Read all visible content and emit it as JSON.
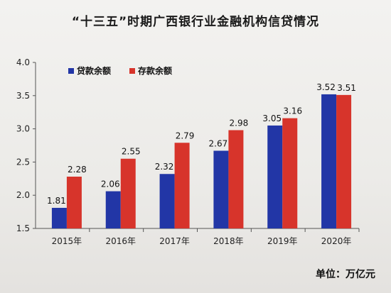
{
  "page": {
    "title": "“十三五”时期广西银行业金融机构信贷情况",
    "unit": "单位：万亿元"
  },
  "chart_data": {
    "type": "bar",
    "title": "“十三五”时期广西银行业金融机构信贷情况",
    "xlabel": "",
    "ylabel": "",
    "ylim": [
      1.5,
      4.0
    ],
    "yticks": [
      "1.5",
      "2.0",
      "2.5",
      "3.0",
      "3.5",
      "4.0"
    ],
    "categories": [
      "2015年",
      "2016年",
      "2017年",
      "2018年",
      "2019年",
      "2020年"
    ],
    "series": [
      {
        "name": "贷款余额",
        "color": "#2236a6",
        "values": [
          1.81,
          2.06,
          2.32,
          2.67,
          3.05,
          3.52
        ]
      },
      {
        "name": "存款余额",
        "color": "#d7342b",
        "values": [
          2.28,
          2.55,
          2.79,
          2.98,
          3.16,
          3.51
        ]
      }
    ],
    "legend": "top-left",
    "grid": false
  }
}
